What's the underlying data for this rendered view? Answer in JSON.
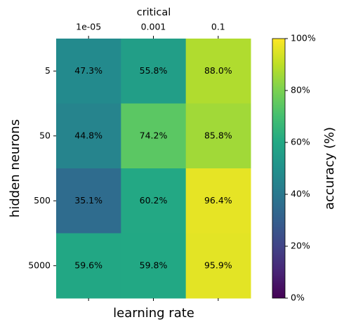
{
  "chart_data": {
    "type": "heatmap",
    "title": "critical",
    "x_label": "learning rate",
    "y_label": "hidden neurons",
    "x_categories": [
      "1e-05",
      "0.001",
      "0.1"
    ],
    "y_categories": [
      "5",
      "50",
      "500",
      "5000"
    ],
    "values": [
      [
        47.3,
        55.8,
        88.0
      ],
      [
        44.8,
        74.2,
        85.8
      ],
      [
        35.1,
        60.2,
        96.4
      ],
      [
        59.6,
        59.8,
        95.9
      ]
    ],
    "value_labels": [
      [
        "47.3%",
        "55.8%",
        "88.0%"
      ],
      [
        "44.8%",
        "74.2%",
        "85.8%"
      ],
      [
        "35.1%",
        "60.2%",
        "96.4%"
      ],
      [
        "59.6%",
        "59.8%",
        "95.9%"
      ]
    ],
    "colormap": "viridis",
    "colorbar_label": "accuracy (%)",
    "colorbar_lim": [
      0,
      100
    ],
    "colorbar_ticks": [
      {
        "value": 0,
        "label": "0%"
      },
      {
        "value": 20,
        "label": "20%"
      },
      {
        "value": 40,
        "label": "40%"
      },
      {
        "value": 60,
        "label": "60%"
      },
      {
        "value": 80,
        "label": "80%"
      },
      {
        "value": 100,
        "label": "100%"
      }
    ]
  }
}
